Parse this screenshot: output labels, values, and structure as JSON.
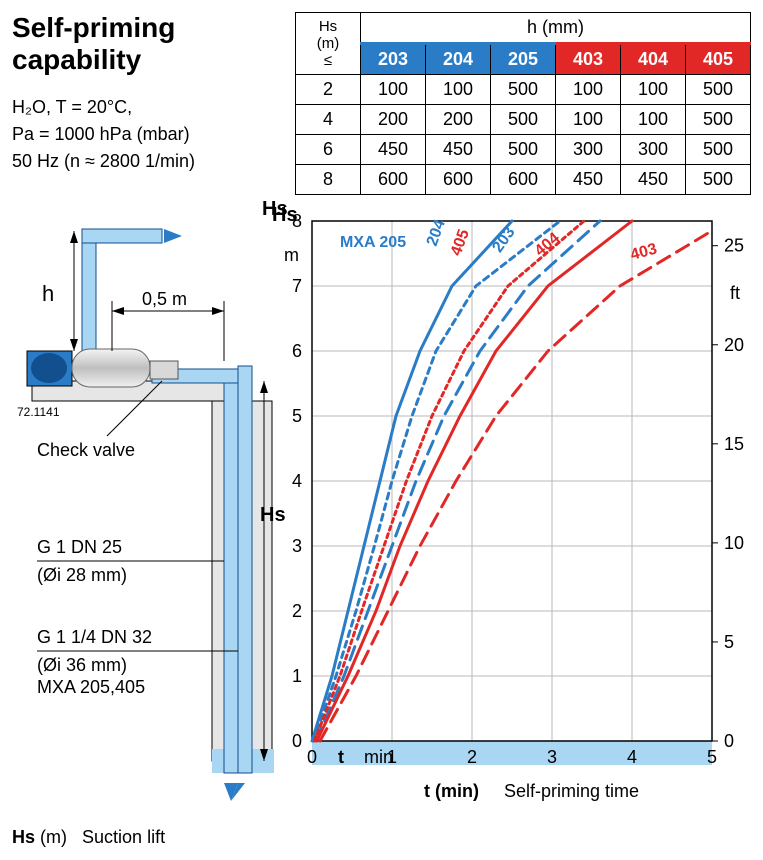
{
  "title": "Self-priming capability",
  "conditions": {
    "line1": "H₂O, T = 20°C,",
    "line2": "Pa = 1000 hPa (mbar)",
    "line3": "50 Hz (n ≈ 2800 1/min)"
  },
  "table": {
    "hs_header": "Hs\n(m)\n≤",
    "hmm_header": "h (mm)",
    "blue_columns": [
      "203",
      "204",
      "205"
    ],
    "red_columns": [
      "403",
      "404",
      "405"
    ],
    "rows": [
      {
        "hs": "2",
        "vals": [
          "100",
          "100",
          "500",
          "100",
          "100",
          "500"
        ]
      },
      {
        "hs": "4",
        "vals": [
          "200",
          "200",
          "500",
          "100",
          "100",
          "500"
        ]
      },
      {
        "hs": "6",
        "vals": [
          "450",
          "450",
          "500",
          "300",
          "300",
          "500"
        ]
      },
      {
        "hs": "8",
        "vals": [
          "600",
          "600",
          "600",
          "450",
          "450",
          "500"
        ]
      }
    ]
  },
  "chart": {
    "xlabel": "t (min)",
    "xlabel_right": "Self-priming time",
    "ylabel_left": "Hs",
    "ylabel_left2": "m",
    "ylabel_right": "ft",
    "xlim": [
      0,
      5
    ],
    "ylim_m": [
      0,
      8
    ],
    "ylim_ft": [
      0,
      27
    ],
    "xtick_step": 1,
    "ytick_step_m": 1,
    "ytick_step_ft": 5,
    "background_color": "#ffffff",
    "grid_color": "#b8b8b8",
    "t_axis_label": "t",
    "t_unit": "min",
    "series": [
      {
        "name": "MXA 205",
        "color": "#2a7cc7",
        "dash": "none",
        "width": 3,
        "points": [
          [
            0,
            0
          ],
          [
            0.25,
            1
          ],
          [
            0.45,
            2
          ],
          [
            0.65,
            3
          ],
          [
            0.85,
            4
          ],
          [
            1.05,
            5
          ],
          [
            1.35,
            6
          ],
          [
            1.75,
            7
          ],
          [
            2.5,
            8
          ]
        ]
      },
      {
        "name": "204",
        "color": "#2a7cc7",
        "dash": "6,5",
        "width": 3,
        "points": [
          [
            0.02,
            0
          ],
          [
            0.3,
            1
          ],
          [
            0.55,
            2
          ],
          [
            0.78,
            3
          ],
          [
            1.0,
            4
          ],
          [
            1.25,
            5
          ],
          [
            1.55,
            6
          ],
          [
            2.05,
            7
          ],
          [
            3.1,
            8
          ]
        ]
      },
      {
        "name": "203",
        "color": "#2a7cc7",
        "dash": "14,8",
        "width": 3,
        "points": [
          [
            0.05,
            0
          ],
          [
            0.4,
            1
          ],
          [
            0.7,
            2
          ],
          [
            1.0,
            3
          ],
          [
            1.3,
            4
          ],
          [
            1.65,
            5
          ],
          [
            2.1,
            6
          ],
          [
            2.7,
            7
          ],
          [
            3.6,
            8
          ]
        ]
      },
      {
        "name": "405",
        "color": "#e22727",
        "dash": "4,4",
        "width": 3,
        "points": [
          [
            0.03,
            0
          ],
          [
            0.35,
            1
          ],
          [
            0.62,
            2
          ],
          [
            0.9,
            3
          ],
          [
            1.18,
            4
          ],
          [
            1.5,
            5
          ],
          [
            1.9,
            6
          ],
          [
            2.45,
            7
          ],
          [
            3.4,
            8
          ]
        ]
      },
      {
        "name": "404",
        "color": "#e22727",
        "dash": "none",
        "width": 3,
        "points": [
          [
            0.06,
            0
          ],
          [
            0.45,
            1
          ],
          [
            0.8,
            2
          ],
          [
            1.1,
            3
          ],
          [
            1.45,
            4
          ],
          [
            1.85,
            5
          ],
          [
            2.3,
            6
          ],
          [
            2.95,
            7
          ],
          [
            4.0,
            8
          ]
        ]
      },
      {
        "name": "403",
        "color": "#e22727",
        "dash": "14,8",
        "width": 3,
        "points": [
          [
            0.1,
            0
          ],
          [
            0.55,
            1
          ],
          [
            0.95,
            2
          ],
          [
            1.35,
            3
          ],
          [
            1.8,
            4
          ],
          [
            2.3,
            5
          ],
          [
            2.95,
            6
          ],
          [
            3.85,
            7
          ],
          [
            5.0,
            7.85
          ]
        ]
      }
    ],
    "line_labels": [
      {
        "text": "MXA 205",
        "x": 0.35,
        "y": 7.6,
        "color": "#2a7cc7",
        "rot": 0
      },
      {
        "text": "204",
        "x": 1.55,
        "y": 7.6,
        "color": "#2a7cc7",
        "rot": -70
      },
      {
        "text": "405",
        "x": 1.85,
        "y": 7.45,
        "color": "#e22727",
        "rot": -70
      },
      {
        "text": "203",
        "x": 2.35,
        "y": 7.5,
        "color": "#2a7cc7",
        "rot": -55
      },
      {
        "text": "404",
        "x": 2.85,
        "y": 7.45,
        "color": "#e22727",
        "rot": -40
      },
      {
        "text": "403",
        "x": 4.0,
        "y": 7.4,
        "color": "#e22727",
        "rot": -15
      }
    ]
  },
  "diagram_labels": {
    "five_m": "0,5 m",
    "h": "h",
    "check_valve": "Check valve",
    "ref": "72.1141",
    "pipe1a": "G 1   DN 25",
    "pipe1b": "(Øi 28 mm)",
    "pipe2a": "G 1 1/4   DN 32",
    "pipe2b": "(Øi 36 mm)",
    "pipe2c": "MXA 205,405",
    "hs_top": "Hs",
    "hs_mid": "Hs"
  },
  "bottom_legend": {
    "hs": "Hs",
    "hs_unit": "(m)",
    "hs_text": "Suction lift"
  },
  "colors": {
    "blue": "#2a7cc7",
    "red": "#e22727",
    "lightblue": "#a9d6f2",
    "darkblue": "#114f8f",
    "grey": "#c8c8c8",
    "darkgrey": "#808080"
  }
}
